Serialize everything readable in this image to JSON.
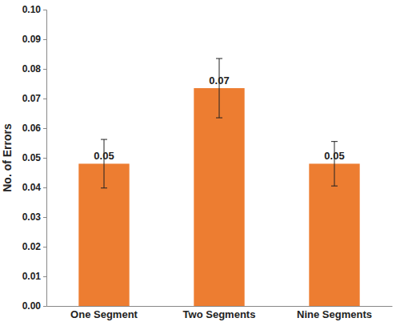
{
  "chart_data": {
    "type": "bar",
    "y_label": "No. of Errors",
    "categories": [
      "One Segment",
      "Two Segments",
      "Nine Segments"
    ],
    "values": [
      0.048,
      0.0735,
      0.048
    ],
    "value_labels": [
      "0.05",
      "0.07",
      "0.05"
    ],
    "errors": [
      0.0082,
      0.01,
      0.0075
    ],
    "color": "#ed7d31",
    "data_labels": true,
    "grid": false,
    "ylim": [
      0,
      0.1
    ],
    "yticks": [
      {
        "value": 0,
        "label": "0.00"
      },
      {
        "value": 0.01,
        "label": "0.01"
      },
      {
        "value": 0.02,
        "label": "0.02"
      },
      {
        "value": 0.03,
        "label": "0.03"
      },
      {
        "value": 0.04,
        "label": "0.04"
      },
      {
        "value": 0.05,
        "label": "0.05"
      },
      {
        "value": 0.06,
        "label": "0.06"
      },
      {
        "value": 0.07,
        "label": "0.07"
      },
      {
        "value": 0.08,
        "label": "0.08"
      },
      {
        "value": 0.09,
        "label": "0.09"
      },
      {
        "value": 0.1,
        "label": "0.10"
      }
    ]
  }
}
